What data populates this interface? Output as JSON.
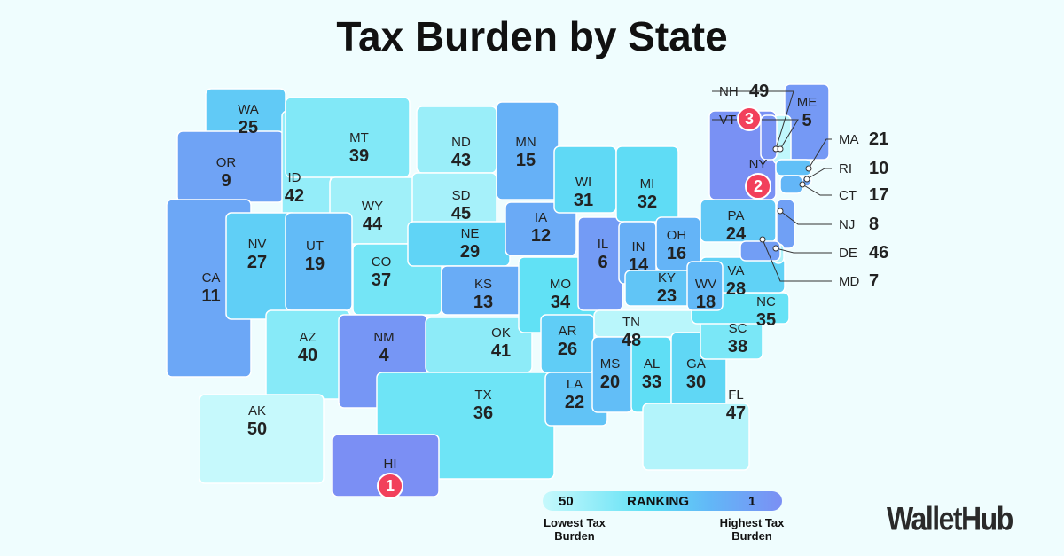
{
  "title": "Tax Burden by State",
  "colors": {
    "highest": "#7b8ff4",
    "high": "#62b7f7",
    "mid": "#5fe0f5",
    "lowest": "#c6f9fc",
    "badge": "#f2405b",
    "background": "#effdfe"
  },
  "states": [
    {
      "abbr": "WA",
      "rank": 25
    },
    {
      "abbr": "OR",
      "rank": 9
    },
    {
      "abbr": "CA",
      "rank": 11
    },
    {
      "abbr": "ID",
      "rank": 42
    },
    {
      "abbr": "NV",
      "rank": 27
    },
    {
      "abbr": "MT",
      "rank": 39
    },
    {
      "abbr": "WY",
      "rank": 44
    },
    {
      "abbr": "UT",
      "rank": 19
    },
    {
      "abbr": "CO",
      "rank": 37
    },
    {
      "abbr": "AZ",
      "rank": 40
    },
    {
      "abbr": "NM",
      "rank": 4
    },
    {
      "abbr": "ND",
      "rank": 43
    },
    {
      "abbr": "SD",
      "rank": 45
    },
    {
      "abbr": "NE",
      "rank": 29
    },
    {
      "abbr": "KS",
      "rank": 13
    },
    {
      "abbr": "OK",
      "rank": 41
    },
    {
      "abbr": "TX",
      "rank": 36
    },
    {
      "abbr": "MN",
      "rank": 15
    },
    {
      "abbr": "IA",
      "rank": 12
    },
    {
      "abbr": "MO",
      "rank": 34
    },
    {
      "abbr": "AR",
      "rank": 26
    },
    {
      "abbr": "LA",
      "rank": 22
    },
    {
      "abbr": "WI",
      "rank": 31
    },
    {
      "abbr": "IL",
      "rank": 6
    },
    {
      "abbr": "MI",
      "rank": 32
    },
    {
      "abbr": "IN",
      "rank": 14
    },
    {
      "abbr": "OH",
      "rank": 16
    },
    {
      "abbr": "KY",
      "rank": 23
    },
    {
      "abbr": "TN",
      "rank": 48
    },
    {
      "abbr": "MS",
      "rank": 20
    },
    {
      "abbr": "AL",
      "rank": 33
    },
    {
      "abbr": "GA",
      "rank": 30
    },
    {
      "abbr": "FL",
      "rank": 47
    },
    {
      "abbr": "SC",
      "rank": 38
    },
    {
      "abbr": "NC",
      "rank": 35
    },
    {
      "abbr": "VA",
      "rank": 28
    },
    {
      "abbr": "WV",
      "rank": 18
    },
    {
      "abbr": "PA",
      "rank": 24
    },
    {
      "abbr": "NY",
      "rank": 2
    },
    {
      "abbr": "ME",
      "rank": 5
    },
    {
      "abbr": "AK",
      "rank": 50
    },
    {
      "abbr": "HI",
      "rank": 1
    },
    {
      "abbr": "NH",
      "rank": 49
    },
    {
      "abbr": "VT",
      "rank": 3
    },
    {
      "abbr": "MA",
      "rank": 21
    },
    {
      "abbr": "RI",
      "rank": 10
    },
    {
      "abbr": "CT",
      "rank": 17
    },
    {
      "abbr": "NJ",
      "rank": 8
    },
    {
      "abbr": "DE",
      "rank": 46
    },
    {
      "abbr": "MD",
      "rank": 7
    }
  ],
  "legend": {
    "low_value": "50",
    "label": "RANKING",
    "high_value": "1",
    "low_caption": "Lowest Tax Burden",
    "high_caption": "Highest Tax Burden"
  },
  "logo": "WalletHub"
}
